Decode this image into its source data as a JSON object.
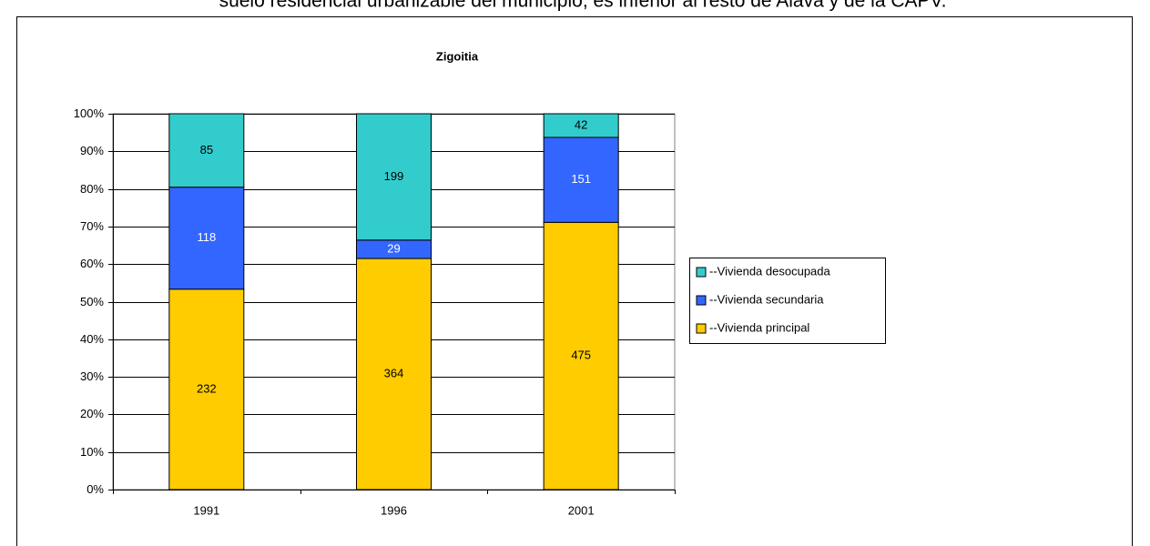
{
  "caption": "suelo residencial urbanizable del municipio, es inferior al resto de Alava y de la CAPV.",
  "chart_data": {
    "type": "bar",
    "stacking": "percent",
    "title": "Zigoitia",
    "categories": [
      "1991",
      "1996",
      "2001"
    ],
    "series": [
      {
        "name": "--Vivienda principal",
        "color": "#ffcc00",
        "label_color": "#000000",
        "values": [
          232,
          364,
          475
        ]
      },
      {
        "name": "--Vivienda secundaria",
        "color": "#3366ff",
        "label_color": "#ffffff",
        "values": [
          118,
          29,
          151
        ]
      },
      {
        "name": "--Vivienda desocupada",
        "color": "#33cccc",
        "label_color": "#000000",
        "values": [
          85,
          199,
          42
        ]
      }
    ],
    "ylim": [
      0,
      100
    ],
    "yticks": [
      {
        "value": 0,
        "label": "0%"
      },
      {
        "value": 10,
        "label": "10%"
      },
      {
        "value": 20,
        "label": "20%"
      },
      {
        "value": 30,
        "label": "30%"
      },
      {
        "value": 40,
        "label": "40%"
      },
      {
        "value": 50,
        "label": "50%"
      },
      {
        "value": 60,
        "label": "60%"
      },
      {
        "value": 70,
        "label": "70%"
      },
      {
        "value": 80,
        "label": "80%"
      },
      {
        "value": 90,
        "label": "90%"
      },
      {
        "value": 100,
        "label": "100%"
      }
    ],
    "grid": true,
    "legend": "right"
  }
}
